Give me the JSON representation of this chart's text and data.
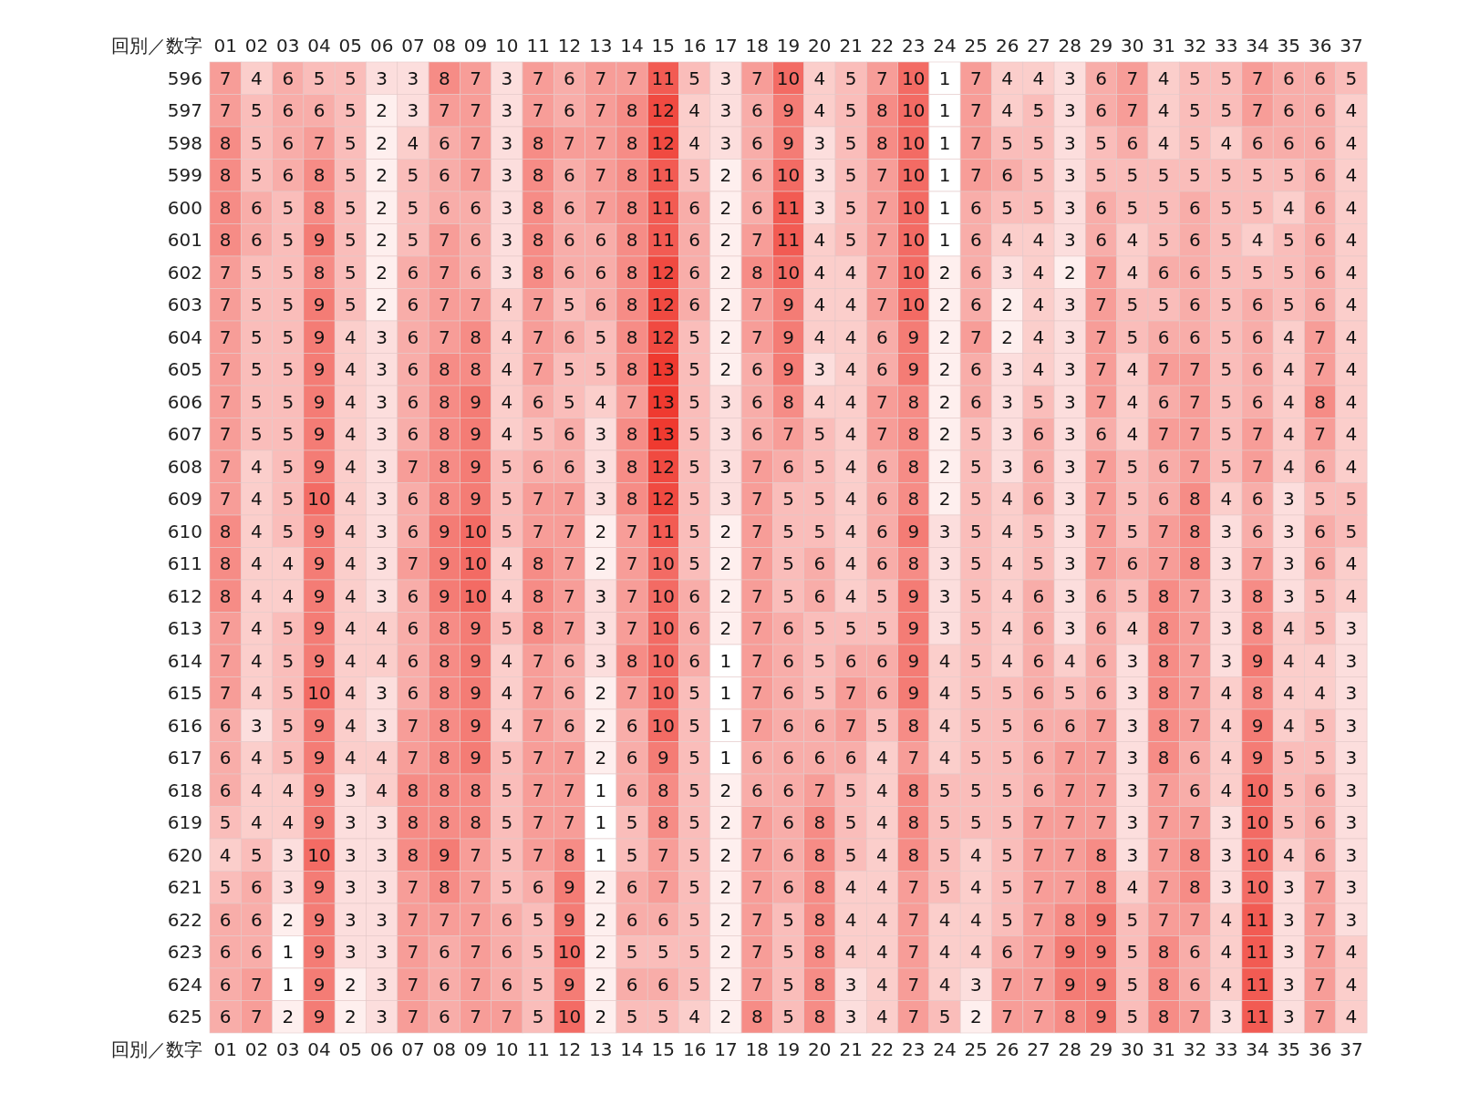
{
  "chart_data": {
    "type": "heatmap",
    "xlabel": "回別／数字",
    "categories": [
      "01",
      "02",
      "03",
      "04",
      "05",
      "06",
      "07",
      "08",
      "09",
      "10",
      "11",
      "12",
      "13",
      "14",
      "15",
      "16",
      "17",
      "18",
      "19",
      "20",
      "21",
      "22",
      "23",
      "24",
      "25",
      "26",
      "27",
      "28",
      "29",
      "30",
      "31",
      "32",
      "33",
      "34",
      "35",
      "36",
      "37"
    ],
    "y_categories": [
      "596",
      "597",
      "598",
      "599",
      "600",
      "601",
      "602",
      "603",
      "604",
      "605",
      "606",
      "607",
      "608",
      "609",
      "610",
      "611",
      "612",
      "613",
      "614",
      "615",
      "616",
      "617",
      "618",
      "619",
      "620",
      "621",
      "622",
      "623",
      "624",
      "625"
    ],
    "cells": [
      [
        7,
        4,
        6,
        5,
        5,
        3,
        3,
        8,
        7,
        3,
        7,
        6,
        7,
        7,
        11,
        5,
        3,
        7,
        10,
        4,
        5,
        7,
        10,
        1,
        7,
        4,
        4,
        3,
        6,
        7,
        4,
        5,
        5,
        7,
        6,
        6,
        5
      ],
      [
        7,
        5,
        6,
        6,
        5,
        2,
        3,
        7,
        7,
        3,
        7,
        6,
        7,
        8,
        12,
        4,
        3,
        6,
        9,
        4,
        5,
        8,
        10,
        1,
        7,
        4,
        5,
        3,
        6,
        7,
        4,
        5,
        5,
        7,
        6,
        6,
        4
      ],
      [
        8,
        5,
        6,
        7,
        5,
        2,
        4,
        6,
        7,
        3,
        8,
        7,
        7,
        8,
        12,
        4,
        3,
        6,
        9,
        3,
        5,
        8,
        10,
        1,
        7,
        5,
        5,
        3,
        5,
        6,
        4,
        5,
        4,
        6,
        6,
        6,
        4
      ],
      [
        8,
        5,
        6,
        8,
        5,
        2,
        5,
        6,
        7,
        3,
        8,
        6,
        7,
        8,
        11,
        5,
        2,
        6,
        10,
        3,
        5,
        7,
        10,
        1,
        7,
        6,
        5,
        3,
        5,
        5,
        5,
        5,
        5,
        5,
        5,
        6,
        4
      ],
      [
        8,
        6,
        5,
        8,
        5,
        2,
        5,
        6,
        6,
        3,
        8,
        6,
        7,
        8,
        11,
        6,
        2,
        6,
        11,
        3,
        5,
        7,
        10,
        1,
        6,
        5,
        5,
        3,
        6,
        5,
        5,
        6,
        5,
        5,
        4,
        6,
        4
      ],
      [
        8,
        6,
        5,
        9,
        5,
        2,
        5,
        7,
        6,
        3,
        8,
        6,
        6,
        8,
        11,
        6,
        2,
        7,
        11,
        4,
        5,
        7,
        10,
        1,
        6,
        4,
        4,
        3,
        6,
        4,
        5,
        6,
        5,
        4,
        5,
        6,
        4
      ],
      [
        7,
        5,
        5,
        8,
        5,
        2,
        6,
        7,
        6,
        3,
        8,
        6,
        6,
        8,
        12,
        6,
        2,
        8,
        10,
        4,
        4,
        7,
        10,
        2,
        6,
        3,
        4,
        2,
        7,
        4,
        6,
        6,
        5,
        5,
        5,
        6,
        4
      ],
      [
        7,
        5,
        5,
        9,
        5,
        2,
        6,
        7,
        7,
        4,
        7,
        5,
        6,
        8,
        12,
        6,
        2,
        7,
        9,
        4,
        4,
        7,
        10,
        2,
        6,
        2,
        4,
        3,
        7,
        5,
        5,
        6,
        5,
        6,
        5,
        6,
        4
      ],
      [
        7,
        5,
        5,
        9,
        4,
        3,
        6,
        7,
        8,
        4,
        7,
        6,
        5,
        8,
        12,
        5,
        2,
        7,
        9,
        4,
        4,
        6,
        9,
        2,
        7,
        2,
        4,
        3,
        7,
        5,
        6,
        6,
        5,
        6,
        4,
        7,
        4
      ],
      [
        7,
        5,
        5,
        9,
        4,
        3,
        6,
        8,
        8,
        4,
        7,
        5,
        5,
        8,
        13,
        5,
        2,
        6,
        9,
        3,
        4,
        6,
        9,
        2,
        6,
        3,
        4,
        3,
        7,
        4,
        7,
        7,
        5,
        6,
        4,
        7,
        4
      ],
      [
        7,
        5,
        5,
        9,
        4,
        3,
        6,
        8,
        9,
        4,
        6,
        5,
        4,
        7,
        13,
        5,
        3,
        6,
        8,
        4,
        4,
        7,
        8,
        2,
        6,
        3,
        5,
        3,
        7,
        4,
        6,
        7,
        5,
        6,
        4,
        8,
        4
      ],
      [
        7,
        5,
        5,
        9,
        4,
        3,
        6,
        8,
        9,
        4,
        5,
        6,
        3,
        8,
        13,
        5,
        3,
        6,
        7,
        5,
        4,
        7,
        8,
        2,
        5,
        3,
        6,
        3,
        6,
        4,
        7,
        7,
        5,
        7,
        4,
        7,
        4
      ],
      [
        7,
        4,
        5,
        9,
        4,
        3,
        7,
        8,
        9,
        5,
        6,
        6,
        3,
        8,
        12,
        5,
        3,
        7,
        6,
        5,
        4,
        6,
        8,
        2,
        5,
        3,
        6,
        3,
        7,
        5,
        6,
        7,
        5,
        7,
        4,
        6,
        4
      ],
      [
        7,
        4,
        5,
        10,
        4,
        3,
        6,
        8,
        9,
        5,
        7,
        7,
        3,
        8,
        12,
        5,
        3,
        7,
        5,
        5,
        4,
        6,
        8,
        2,
        5,
        4,
        6,
        3,
        7,
        5,
        6,
        8,
        4,
        6,
        3,
        5,
        5
      ],
      [
        8,
        4,
        5,
        9,
        4,
        3,
        6,
        9,
        10,
        5,
        7,
        7,
        2,
        7,
        11,
        5,
        2,
        7,
        5,
        5,
        4,
        6,
        9,
        3,
        5,
        4,
        5,
        3,
        7,
        5,
        7,
        8,
        3,
        6,
        3,
        6,
        5
      ],
      [
        8,
        4,
        4,
        9,
        4,
        3,
        7,
        9,
        10,
        4,
        8,
        7,
        2,
        7,
        10,
        5,
        2,
        7,
        5,
        6,
        4,
        6,
        8,
        3,
        5,
        4,
        5,
        3,
        7,
        6,
        7,
        8,
        3,
        7,
        3,
        6,
        4
      ],
      [
        8,
        4,
        4,
        9,
        4,
        3,
        6,
        9,
        10,
        4,
        8,
        7,
        3,
        7,
        10,
        6,
        2,
        7,
        5,
        6,
        4,
        5,
        9,
        3,
        5,
        4,
        6,
        3,
        6,
        5,
        8,
        7,
        3,
        8,
        3,
        5,
        4
      ],
      [
        7,
        4,
        5,
        9,
        4,
        4,
        6,
        8,
        9,
        5,
        8,
        7,
        3,
        7,
        10,
        6,
        2,
        7,
        6,
        5,
        5,
        5,
        9,
        3,
        5,
        4,
        6,
        3,
        6,
        4,
        8,
        7,
        3,
        8,
        4,
        5,
        3
      ],
      [
        7,
        4,
        5,
        9,
        4,
        4,
        6,
        8,
        9,
        4,
        7,
        6,
        3,
        8,
        10,
        6,
        1,
        7,
        6,
        5,
        6,
        6,
        9,
        4,
        5,
        4,
        6,
        4,
        6,
        3,
        8,
        7,
        3,
        9,
        4,
        4,
        3
      ],
      [
        7,
        4,
        5,
        10,
        4,
        3,
        6,
        8,
        9,
        4,
        7,
        6,
        2,
        7,
        10,
        5,
        1,
        7,
        6,
        5,
        7,
        6,
        9,
        4,
        5,
        5,
        6,
        5,
        6,
        3,
        8,
        7,
        4,
        8,
        4,
        4,
        3
      ],
      [
        6,
        3,
        5,
        9,
        4,
        3,
        7,
        8,
        9,
        4,
        7,
        6,
        2,
        6,
        10,
        5,
        1,
        7,
        6,
        6,
        7,
        5,
        8,
        4,
        5,
        5,
        6,
        6,
        7,
        3,
        8,
        7,
        4,
        9,
        4,
        5,
        3
      ],
      [
        6,
        4,
        5,
        9,
        4,
        4,
        7,
        8,
        9,
        5,
        7,
        7,
        2,
        6,
        9,
        5,
        1,
        6,
        6,
        6,
        6,
        4,
        7,
        4,
        5,
        5,
        6,
        7,
        7,
        3,
        8,
        6,
        4,
        9,
        5,
        5,
        3
      ],
      [
        6,
        4,
        4,
        9,
        3,
        4,
        8,
        8,
        8,
        5,
        7,
        7,
        1,
        6,
        8,
        5,
        2,
        6,
        6,
        7,
        5,
        4,
        8,
        5,
        5,
        5,
        6,
        7,
        7,
        3,
        7,
        6,
        4,
        10,
        5,
        6,
        3
      ],
      [
        5,
        4,
        4,
        9,
        3,
        3,
        8,
        8,
        8,
        5,
        7,
        7,
        1,
        5,
        8,
        5,
        2,
        7,
        6,
        8,
        5,
        4,
        8,
        5,
        5,
        5,
        7,
        7,
        7,
        3,
        7,
        7,
        3,
        10,
        5,
        6,
        3
      ],
      [
        4,
        5,
        3,
        10,
        3,
        3,
        8,
        9,
        7,
        5,
        7,
        8,
        1,
        5,
        7,
        5,
        2,
        7,
        6,
        8,
        5,
        4,
        8,
        5,
        4,
        5,
        7,
        7,
        8,
        3,
        7,
        8,
        3,
        10,
        4,
        6,
        3
      ],
      [
        5,
        6,
        3,
        9,
        3,
        3,
        7,
        8,
        7,
        5,
        6,
        9,
        2,
        6,
        7,
        5,
        2,
        7,
        6,
        8,
        4,
        4,
        7,
        5,
        4,
        5,
        7,
        7,
        8,
        4,
        7,
        8,
        3,
        10,
        3,
        7,
        3
      ],
      [
        6,
        6,
        2,
        9,
        3,
        3,
        7,
        7,
        7,
        6,
        5,
        9,
        2,
        6,
        6,
        5,
        2,
        7,
        5,
        8,
        4,
        4,
        7,
        4,
        4,
        5,
        7,
        8,
        9,
        5,
        7,
        7,
        4,
        11,
        3,
        7,
        3
      ],
      [
        6,
        6,
        1,
        9,
        3,
        3,
        7,
        6,
        7,
        6,
        5,
        10,
        2,
        5,
        5,
        5,
        2,
        7,
        5,
        8,
        4,
        4,
        7,
        4,
        4,
        6,
        7,
        9,
        9,
        5,
        8,
        6,
        4,
        11,
        3,
        7,
        4
      ],
      [
        6,
        7,
        1,
        9,
        2,
        3,
        7,
        6,
        7,
        6,
        5,
        9,
        2,
        6,
        6,
        5,
        2,
        7,
        5,
        8,
        3,
        4,
        7,
        4,
        3,
        7,
        7,
        9,
        9,
        5,
        8,
        6,
        4,
        11,
        3,
        7,
        4
      ],
      [
        6,
        7,
        2,
        9,
        2,
        3,
        7,
        6,
        7,
        7,
        5,
        10,
        2,
        5,
        5,
        4,
        2,
        8,
        5,
        8,
        3,
        4,
        7,
        5,
        2,
        7,
        7,
        8,
        9,
        5,
        8,
        7,
        3,
        11,
        3,
        7,
        4
      ]
    ],
    "data_labels": true
  }
}
